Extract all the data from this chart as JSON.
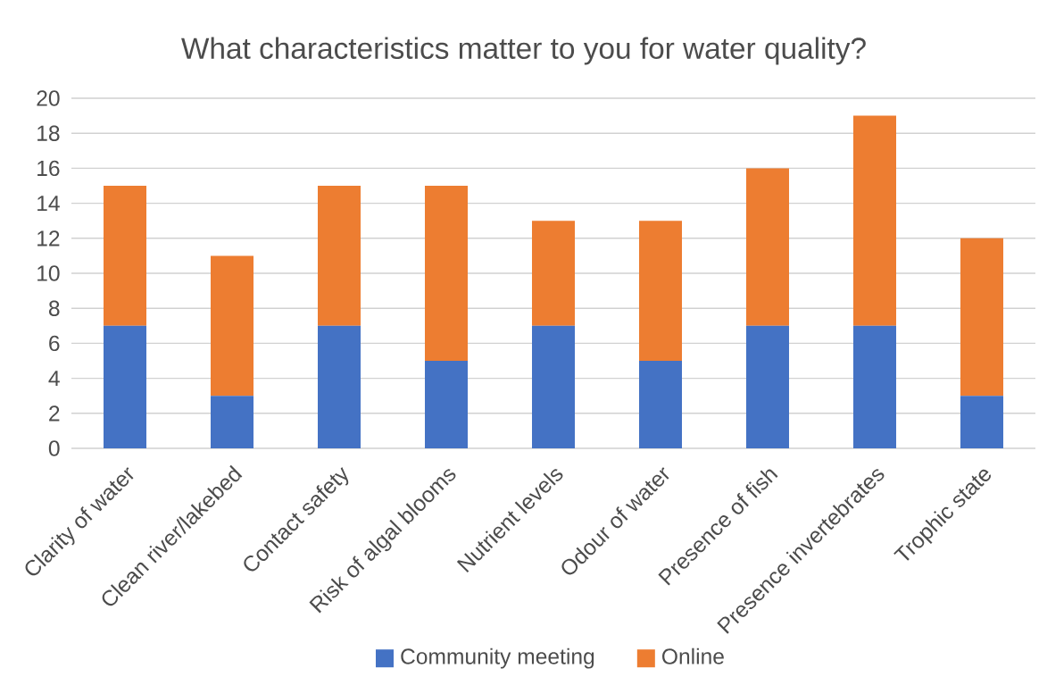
{
  "chart_data": {
    "type": "bar",
    "title": "What characteristics matter to you for water quality?",
    "categories": [
      "Clarity of water",
      "Clean river/lakebed",
      "Contact safety",
      "Risk of algal blooms",
      "Nutrient levels",
      "Odour of water",
      "Presence of fish",
      "Presence invertebrates",
      "Trophic state"
    ],
    "series": [
      {
        "name": "Community meeting",
        "color": "#4472c4",
        "values": [
          7,
          3,
          7,
          5,
          7,
          5,
          7,
          7,
          3
        ]
      },
      {
        "name": "Online",
        "color": "#ed7d31",
        "values": [
          8,
          8,
          8,
          10,
          6,
          8,
          9,
          12,
          9
        ]
      }
    ],
    "stacked": true,
    "ylim": [
      0,
      20
    ],
    "yticks": [
      0,
      2,
      4,
      6,
      8,
      10,
      12,
      14,
      16,
      18,
      20
    ],
    "grid": "y",
    "legend": "bottom"
  }
}
